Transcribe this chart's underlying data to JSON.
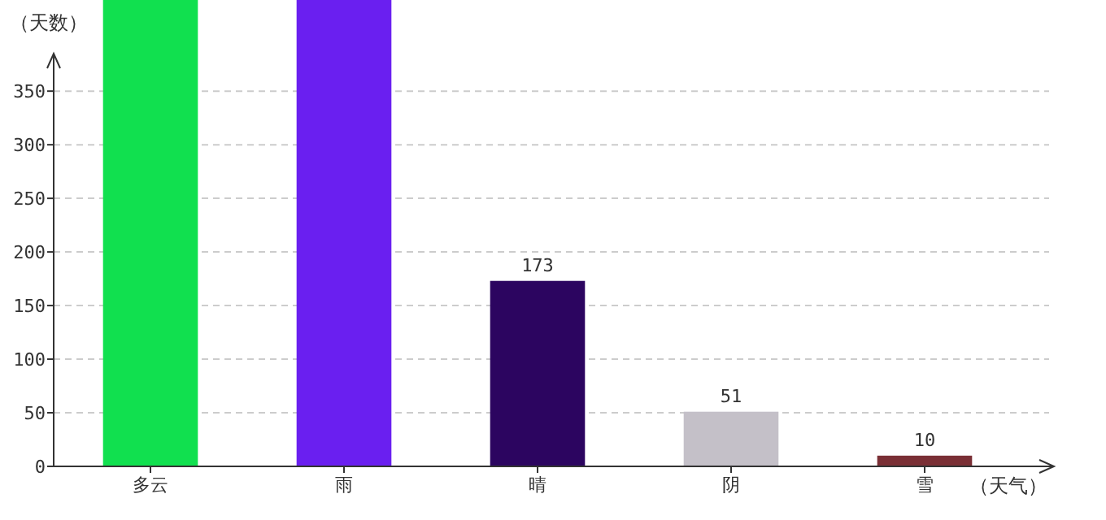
{
  "chart_data": {
    "type": "bar",
    "ylabel": "（天数）",
    "xlabel": "（天气）",
    "categories": [
      "多云",
      "雨",
      "晴",
      "阴",
      "雪"
    ],
    "values": [
      435,
      435,
      173,
      51,
      10
    ],
    "colors": [
      "#11e04f",
      "#6a1ff0",
      "#2c0560",
      "#c4c0c8",
      "#7a2f35"
    ],
    "value_labels": [
      null,
      null,
      "173",
      "51",
      "10"
    ],
    "ylim": [
      0,
      435
    ],
    "yticks": [
      0,
      50,
      100,
      150,
      200,
      250,
      300,
      350
    ],
    "grid": "y"
  }
}
